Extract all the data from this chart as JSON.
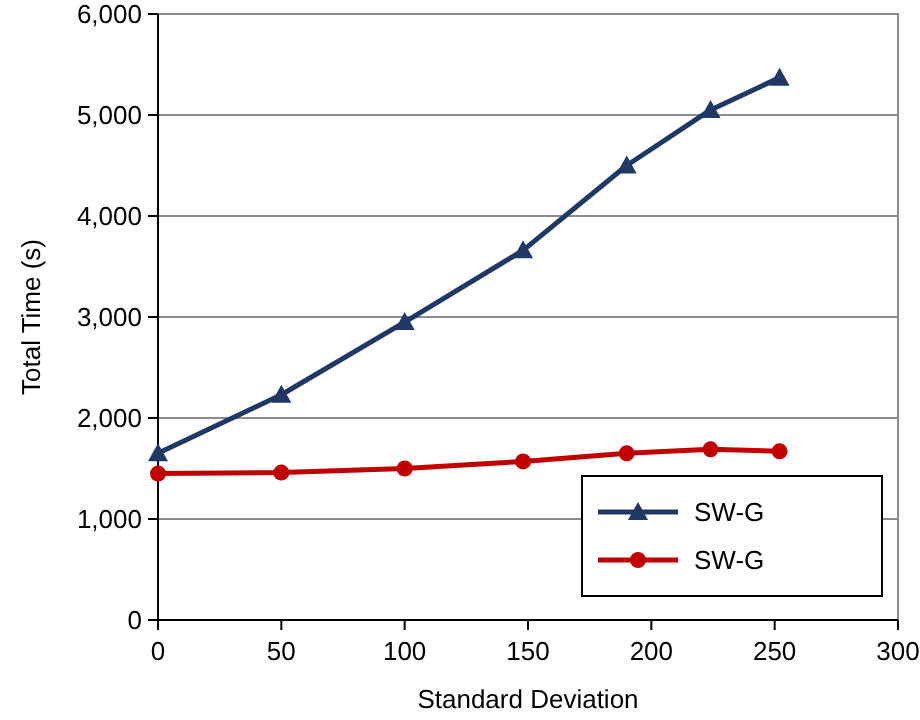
{
  "chart_data": {
    "type": "line",
    "xlabel": "Standard Deviation",
    "ylabel": "Total Time (s)",
    "x": [
      0,
      50,
      100,
      148,
      190,
      224,
      252
    ],
    "series": [
      {
        "name": "SW-G",
        "color": "#1f3864",
        "marker": "triangle",
        "values": [
          1650,
          2230,
          2950,
          3660,
          4500,
          5050,
          5370
        ]
      },
      {
        "name": "SW-G",
        "color": "#c00000",
        "marker": "circle",
        "values": [
          1450,
          1460,
          1500,
          1570,
          1650,
          1690,
          1670
        ]
      }
    ],
    "xlim": [
      0,
      300
    ],
    "xticks": [
      0,
      50,
      100,
      150,
      200,
      250,
      300
    ],
    "ylim": [
      0,
      6000
    ],
    "yticks": [
      {
        "value": 0,
        "label": "0"
      },
      {
        "value": 1000,
        "label": "1,000"
      },
      {
        "value": 2000,
        "label": "2,000"
      },
      {
        "value": 3000,
        "label": "3,000"
      },
      {
        "value": 4000,
        "label": "4,000"
      },
      {
        "value": 5000,
        "label": "5,000"
      },
      {
        "value": 6000,
        "label": "6,000"
      }
    ],
    "grid": "y",
    "legend": "bottom right",
    "line_style": "solid"
  }
}
